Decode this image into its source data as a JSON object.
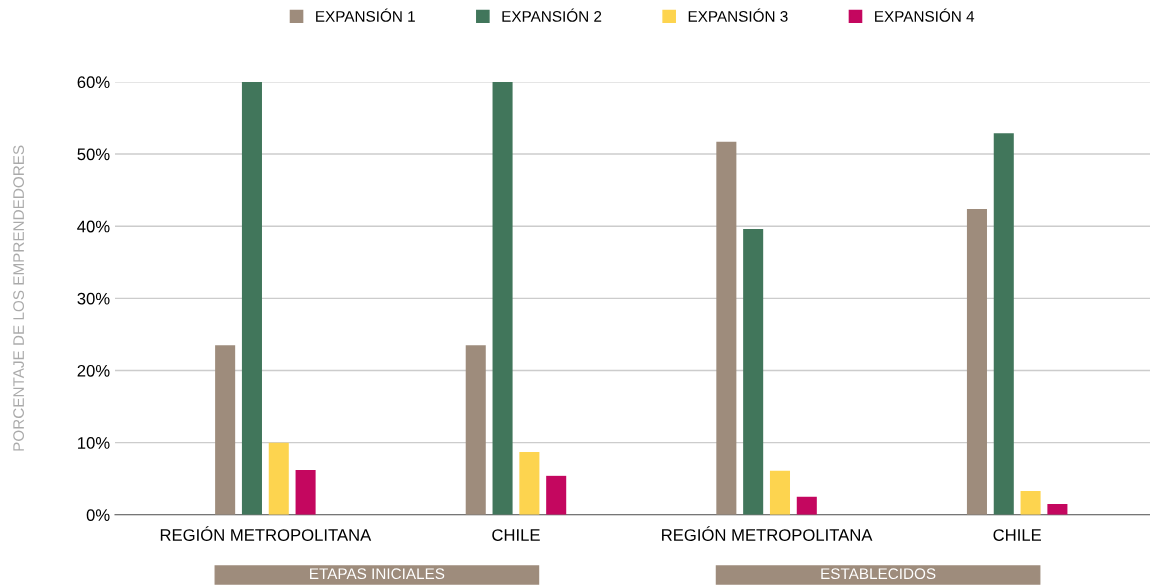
{
  "chart_data": {
    "type": "bar",
    "ylabel": "PORCENTAJE DE LOS EMPRENDEDORES",
    "categories": [
      "REGIÓN METROPOLITANA",
      "CHILE",
      "REGIÓN METROPOLITANA",
      "CHILE"
    ],
    "series": [
      {
        "name": "EXPANSIÓN 1",
        "color": "#9e8c7c",
        "values": [
          23.5,
          23.5,
          51.7,
          42.4
        ]
      },
      {
        "name": "EXPANSIÓN 2",
        "color": "#41765b",
        "values": [
          60.0,
          60.0,
          39.6,
          52.9
        ]
      },
      {
        "name": "EXPANSIÓN 3",
        "color": "#fdd44f",
        "values": [
          10.0,
          8.7,
          6.1,
          3.3
        ]
      },
      {
        "name": "EXPANSIÓN 4",
        "color": "#c4075f",
        "values": [
          6.2,
          5.4,
          2.5,
          1.5
        ]
      }
    ],
    "ylim": [
      0,
      60
    ],
    "yticks": [
      {
        "value": 0,
        "label": "0%"
      },
      {
        "value": 10,
        "label": "10%"
      },
      {
        "value": 20,
        "label": "20%"
      },
      {
        "value": 30,
        "label": "30%"
      },
      {
        "value": 40,
        "label": "40%"
      },
      {
        "value": 50,
        "label": "50%"
      },
      {
        "value": 60,
        "label": "60%"
      }
    ],
    "grid": "y",
    "legend": "top",
    "annotations": [
      "ETAPAS INICIALES",
      "ESTABLECIDOS"
    ]
  }
}
